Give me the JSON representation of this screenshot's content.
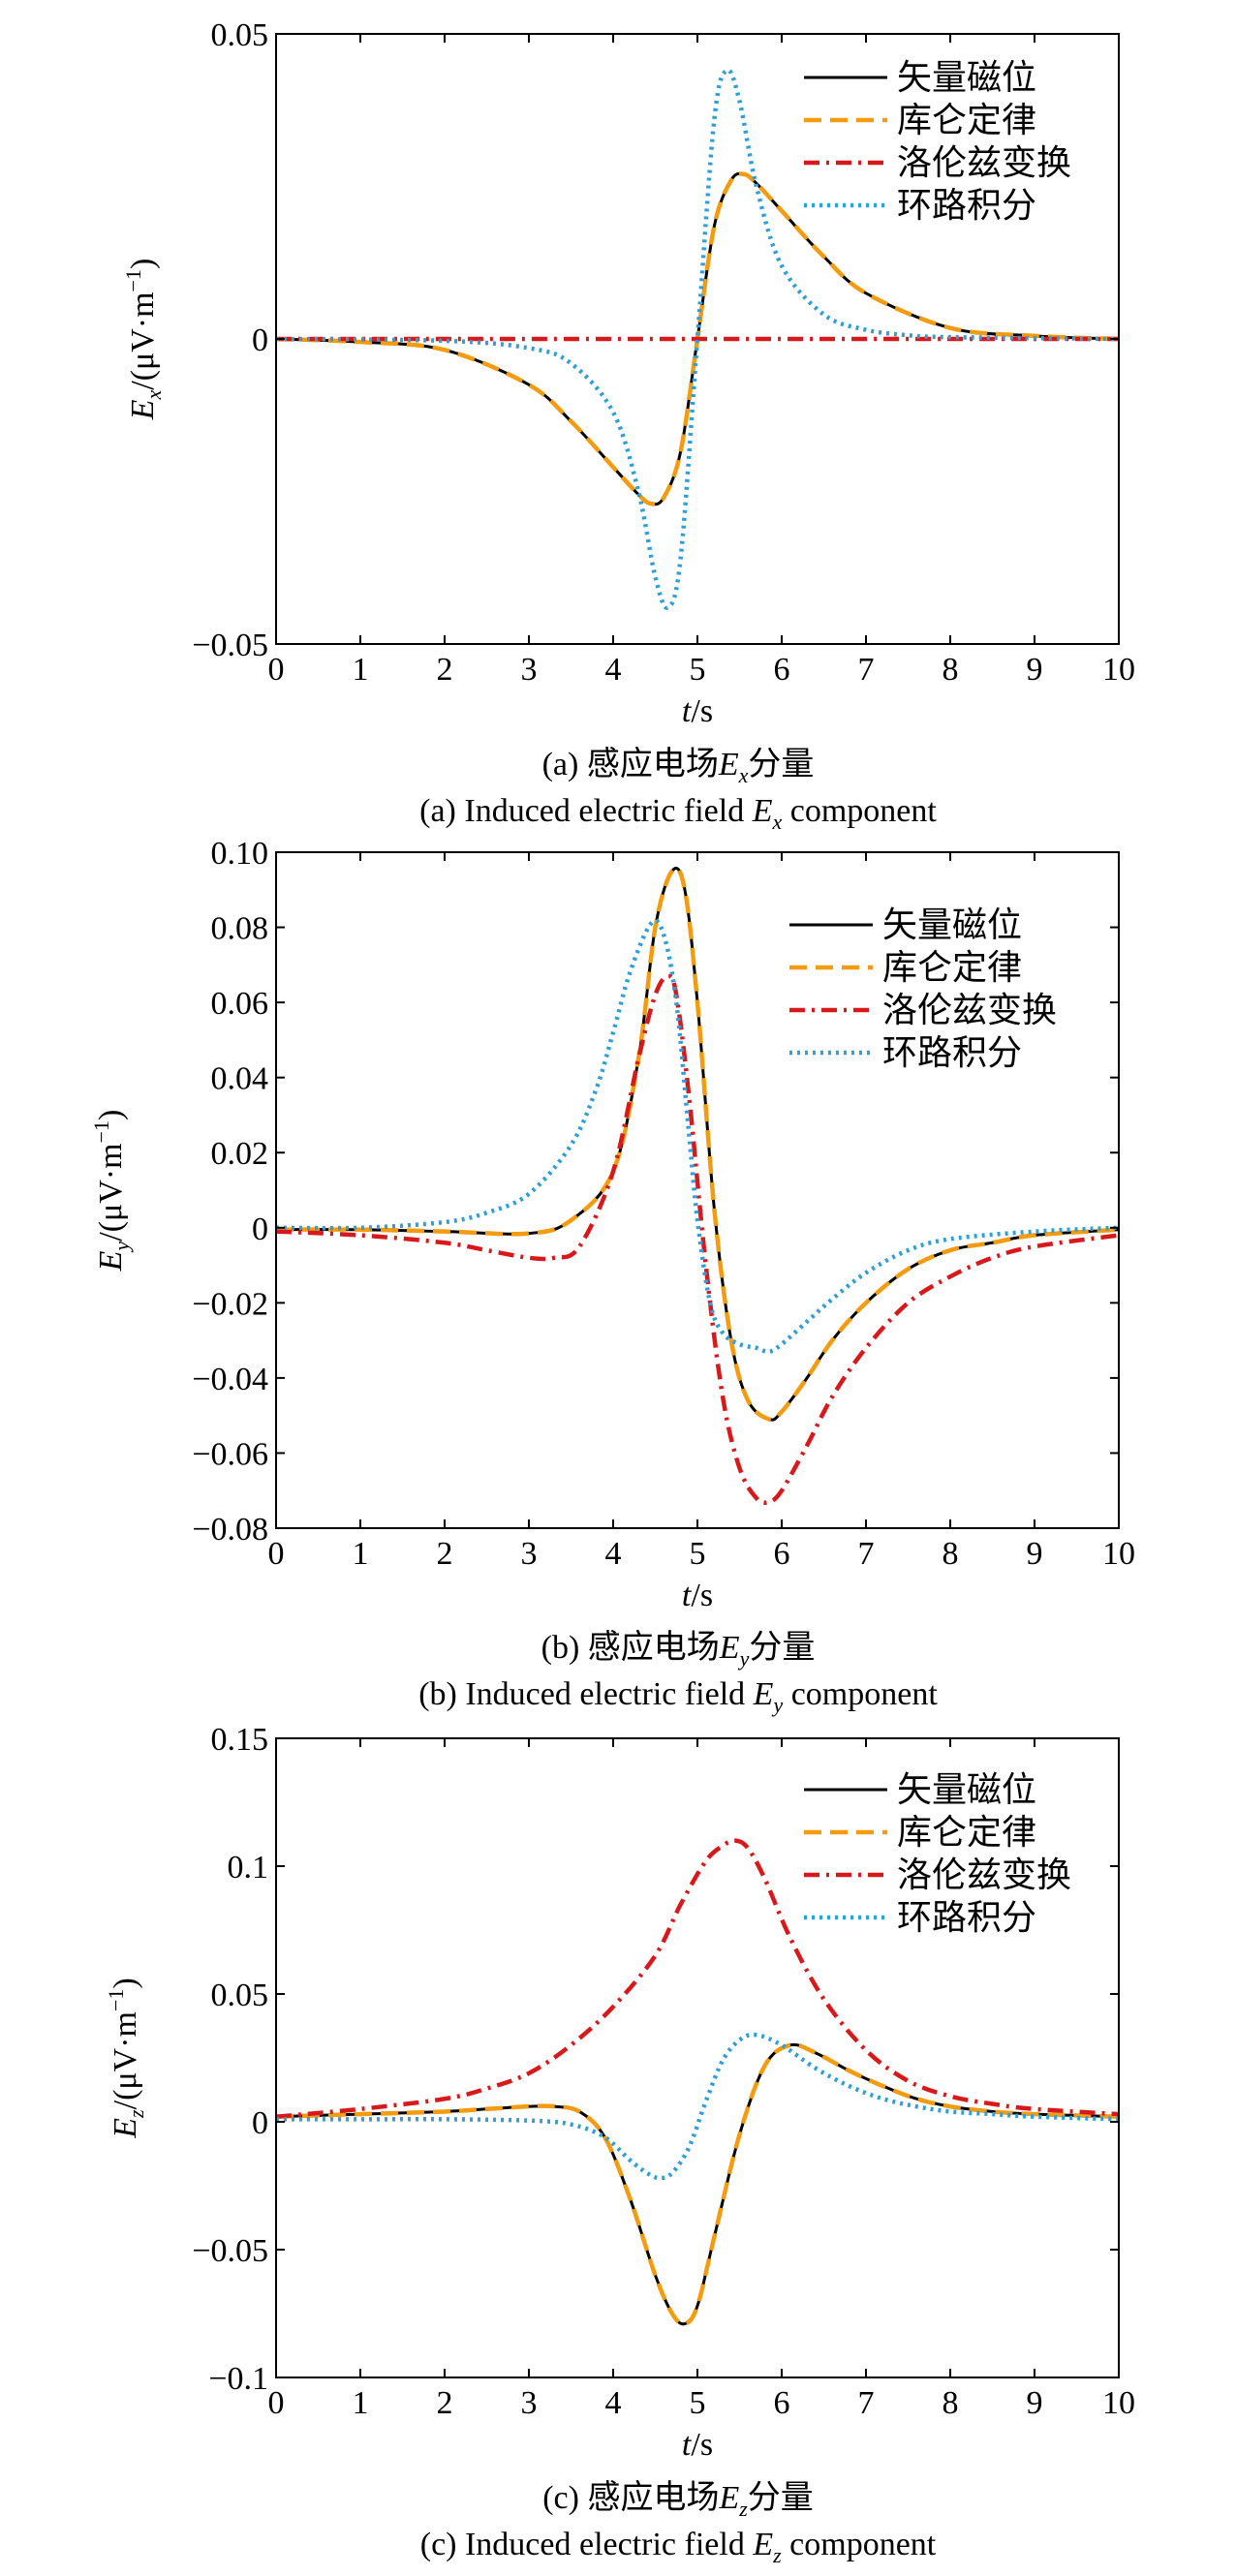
{
  "chart_data": [
    {
      "panel": "a",
      "type": "line",
      "xlabel_var": "t",
      "xlabel_unit": "/s",
      "ylabel_var": "E",
      "ylabel_sub": "x",
      "ylabel_unit": "/(μV·m",
      "ylabel_exp": "−1",
      "ylabel_close": ")",
      "xlim": [
        0,
        10
      ],
      "ylim": [
        -0.05,
        0.05
      ],
      "xticks": [
        0,
        1,
        2,
        3,
        4,
        5,
        6,
        7,
        8,
        9,
        10
      ],
      "xtick_labels": [
        "0",
        "1",
        "2",
        "3",
        "4",
        "5",
        "6",
        "7",
        "8",
        "9",
        "10"
      ],
      "yticks": [
        -0.05,
        0,
        0.05
      ],
      "ytick_labels": [
        "−0.05",
        "0",
        "0.05"
      ],
      "grid": false,
      "legend_position": "top-right",
      "caption_cn_prefix": "(a) 感应电场",
      "caption_cn_var": "E",
      "caption_cn_sub": "x",
      "caption_cn_suffix": "分量",
      "caption_en_prefix": "(a) Induced electric field ",
      "caption_en_var": "E",
      "caption_en_sub": "x",
      "caption_en_suffix": " component",
      "series": [
        {
          "name": "矢量磁位",
          "color": "#000000",
          "style": "solid",
          "x": [
            0,
            1,
            2,
            3,
            3.5,
            4,
            4.3,
            4.45,
            4.6,
            4.8,
            5.0,
            5.2,
            5.4,
            5.55,
            5.7,
            6.0,
            6.5,
            7,
            8,
            9,
            10
          ],
          "y": [
            0,
            -0.0005,
            -0.0018,
            -0.0075,
            -0.0135,
            -0.021,
            -0.0255,
            -0.027,
            -0.026,
            -0.0185,
            0,
            0.0185,
            0.026,
            0.027,
            0.0255,
            0.021,
            0.0135,
            0.0075,
            0.0018,
            0.0005,
            0
          ]
        },
        {
          "name": "库仑定律",
          "color": "#f39c12",
          "style": "dashed",
          "x": [
            0,
            1,
            2,
            3,
            3.5,
            4,
            4.3,
            4.45,
            4.6,
            4.8,
            5.0,
            5.2,
            5.4,
            5.55,
            5.7,
            6.0,
            6.5,
            7,
            8,
            9,
            10
          ],
          "y": [
            0,
            -0.0005,
            -0.0018,
            -0.0075,
            -0.0135,
            -0.021,
            -0.0255,
            -0.027,
            -0.026,
            -0.0185,
            0,
            0.0185,
            0.026,
            0.027,
            0.0255,
            0.021,
            0.0135,
            0.0075,
            0.0018,
            0.0005,
            0
          ]
        },
        {
          "name": "洛伦兹变换",
          "color": "#d7191c",
          "style": "dashdot",
          "x": [
            0,
            10
          ],
          "y": [
            0,
            0
          ]
        },
        {
          "name": "环路积分",
          "color": "#2e9fd8",
          "style": "dotted",
          "x": [
            0,
            2,
            3,
            3.5,
            4,
            4.3,
            4.5,
            4.65,
            4.8,
            5.0,
            5.2,
            5.35,
            5.5,
            5.7,
            6.0,
            6.5,
            7,
            7.5,
            8,
            10
          ],
          "y": [
            0,
            -0.0003,
            -0.0015,
            -0.004,
            -0.012,
            -0.025,
            -0.039,
            -0.044,
            -0.036,
            0,
            0.036,
            0.044,
            0.039,
            0.025,
            0.012,
            0.004,
            0.0015,
            0.0006,
            0.0003,
            0
          ]
        }
      ]
    },
    {
      "panel": "b",
      "type": "line",
      "xlabel_var": "t",
      "xlabel_unit": "/s",
      "ylabel_var": "E",
      "ylabel_sub": "y",
      "ylabel_unit": "/(μV·m",
      "ylabel_exp": "−1",
      "ylabel_close": ")",
      "xlim": [
        0,
        10
      ],
      "ylim": [
        -0.08,
        0.1
      ],
      "xticks": [
        0,
        1,
        2,
        3,
        4,
        5,
        6,
        7,
        8,
        9,
        10
      ],
      "xtick_labels": [
        "0",
        "1",
        "2",
        "3",
        "4",
        "5",
        "6",
        "7",
        "8",
        "9",
        "10"
      ],
      "yticks": [
        -0.08,
        -0.06,
        -0.04,
        -0.02,
        0,
        0.02,
        0.04,
        0.06,
        0.08,
        0.1
      ],
      "ytick_labels": [
        "−0.08",
        "−0.06",
        "−0.04",
        "−0.02",
        "0",
        "0.02",
        "0.04",
        "0.06",
        "0.08",
        "0.10"
      ],
      "grid": false,
      "legend_position": "top-right",
      "caption_cn_prefix": "(b) 感应电场",
      "caption_cn_var": "E",
      "caption_cn_sub": "y",
      "caption_cn_suffix": "分量",
      "caption_en_prefix": "(b) Induced electric field ",
      "caption_en_var": "E",
      "caption_en_sub": "y",
      "caption_en_suffix": " component",
      "series": [
        {
          "name": "矢量磁位",
          "color": "#000000",
          "style": "solid",
          "x": [
            0,
            1,
            2,
            3,
            3.5,
            4,
            4.3,
            4.5,
            4.7,
            4.85,
            5.0,
            5.2,
            5.4,
            5.6,
            5.85,
            6.0,
            6.3,
            6.6,
            7,
            7.5,
            8,
            8.5,
            9,
            10
          ],
          "y": [
            -0.0005,
            -0.0005,
            -0.001,
            -0.0015,
            0.002,
            0.015,
            0.045,
            0.08,
            0.095,
            0.09,
            0.06,
            0.005,
            -0.03,
            -0.046,
            -0.051,
            -0.049,
            -0.04,
            -0.03,
            -0.02,
            -0.011,
            -0.006,
            -0.004,
            -0.002,
            -0.0005
          ]
        },
        {
          "name": "库仑定律",
          "color": "#f39c12",
          "style": "dashed",
          "x": [
            0,
            1,
            2,
            3,
            3.5,
            4,
            4.3,
            4.5,
            4.7,
            4.85,
            5.0,
            5.2,
            5.4,
            5.6,
            5.85,
            6.0,
            6.3,
            6.6,
            7,
            7.5,
            8,
            8.5,
            9,
            10
          ],
          "y": [
            -0.0005,
            -0.0005,
            -0.001,
            -0.0015,
            0.002,
            0.015,
            0.045,
            0.08,
            0.095,
            0.09,
            0.06,
            0.005,
            -0.03,
            -0.046,
            -0.051,
            -0.049,
            -0.04,
            -0.03,
            -0.02,
            -0.011,
            -0.006,
            -0.004,
            -0.002,
            -0.0005
          ]
        },
        {
          "name": "洛伦兹变换",
          "color": "#d7191c",
          "style": "dashdot",
          "x": [
            0,
            1,
            2,
            2.5,
            3,
            3.3,
            3.6,
            4,
            4.3,
            4.5,
            4.65,
            4.75,
            4.9,
            5.1,
            5.3,
            5.5,
            5.7,
            5.85,
            6.0,
            6.3,
            6.6,
            7,
            7.5,
            8,
            8.5,
            9,
            10
          ],
          "y": [
            -0.001,
            -0.002,
            -0.004,
            -0.006,
            -0.008,
            -0.008,
            -0.005,
            0.015,
            0.045,
            0.062,
            0.067,
            0.062,
            0.035,
            -0.01,
            -0.045,
            -0.064,
            -0.072,
            -0.073,
            -0.07,
            -0.058,
            -0.045,
            -0.032,
            -0.02,
            -0.013,
            -0.008,
            -0.005,
            -0.002
          ]
        },
        {
          "name": "环路积分",
          "color": "#2e9fd8",
          "style": "dotted",
          "x": [
            0,
            1,
            2,
            2.5,
            3,
            3.5,
            3.8,
            4.0,
            4.2,
            4.45,
            4.6,
            4.75,
            4.9,
            5.0,
            5.15,
            5.3,
            5.5,
            5.7,
            5.85,
            6.0,
            6.3,
            6.6,
            7,
            7.5,
            8,
            9,
            10
          ],
          "y": [
            0,
            0,
            0.0015,
            0.004,
            0.009,
            0.022,
            0.037,
            0.052,
            0.068,
            0.081,
            0.078,
            0.06,
            0.025,
            0.002,
            -0.02,
            -0.028,
            -0.031,
            -0.032,
            -0.033,
            -0.031,
            -0.025,
            -0.019,
            -0.012,
            -0.006,
            -0.003,
            -0.001,
            0
          ]
        }
      ]
    },
    {
      "panel": "c",
      "type": "line",
      "xlabel_var": "t",
      "xlabel_unit": "/s",
      "ylabel_var": "E",
      "ylabel_sub": "z",
      "ylabel_unit": "/(μV·m",
      "ylabel_exp": "−1",
      "ylabel_close": ")",
      "xlim": [
        0,
        10
      ],
      "ylim": [
        -0.1,
        0.15
      ],
      "xticks": [
        0,
        1,
        2,
        3,
        4,
        5,
        6,
        7,
        8,
        9,
        10
      ],
      "xtick_labels": [
        "0",
        "1",
        "2",
        "3",
        "4",
        "5",
        "6",
        "7",
        "8",
        "9",
        "10"
      ],
      "yticks": [
        -0.1,
        -0.05,
        0,
        0.05,
        0.1,
        0.15
      ],
      "ytick_labels": [
        "−0.1",
        "−0.05",
        "0",
        "0.05",
        "0.1",
        "0.15"
      ],
      "grid": false,
      "legend_position": "top-right",
      "caption_cn_prefix": "(c) 感应电场",
      "caption_cn_var": "E",
      "caption_cn_sub": "z",
      "caption_cn_suffix": "分量",
      "caption_en_prefix": "(c) Induced electric field ",
      "caption_en_var": "E",
      "caption_en_sub": "z",
      "caption_en_suffix": " component",
      "series": [
        {
          "name": "矢量磁位",
          "color": "#000000",
          "style": "solid",
          "x": [
            0,
            1,
            2,
            2.5,
            3,
            3.3,
            3.6,
            3.9,
            4.2,
            4.5,
            4.7,
            4.85,
            5.0,
            5.2,
            5.5,
            5.8,
            6.1,
            6.4,
            6.8,
            7.2,
            7.6,
            8,
            8.5,
            9,
            10
          ],
          "y": [
            0.002,
            0.003,
            0.004,
            0.005,
            0.006,
            0.006,
            0.004,
            -0.006,
            -0.03,
            -0.06,
            -0.075,
            -0.079,
            -0.072,
            -0.045,
            -0.005,
            0.022,
            0.03,
            0.027,
            0.02,
            0.014,
            0.009,
            0.006,
            0.004,
            0.003,
            0.002
          ]
        },
        {
          "name": "库仑定律",
          "color": "#f39c12",
          "style": "dashed",
          "x": [
            0,
            1,
            2,
            2.5,
            3,
            3.3,
            3.6,
            3.9,
            4.2,
            4.5,
            4.7,
            4.85,
            5.0,
            5.2,
            5.5,
            5.8,
            6.1,
            6.4,
            6.8,
            7.2,
            7.6,
            8,
            8.5,
            9,
            10
          ],
          "y": [
            0.002,
            0.003,
            0.004,
            0.005,
            0.006,
            0.006,
            0.004,
            -0.006,
            -0.03,
            -0.06,
            -0.075,
            -0.079,
            -0.072,
            -0.045,
            -0.005,
            0.022,
            0.03,
            0.027,
            0.02,
            0.014,
            0.009,
            0.006,
            0.004,
            0.003,
            0.002
          ]
        },
        {
          "name": "洛伦兹变换",
          "color": "#d7191c",
          "style": "dashdot",
          "x": [
            0,
            1,
            2,
            2.5,
            3,
            3.5,
            4,
            4.5,
            4.8,
            5.1,
            5.3,
            5.45,
            5.6,
            5.8,
            6.1,
            6.5,
            7,
            7.5,
            8,
            8.5,
            9,
            10
          ],
          "y": [
            0.002,
            0.005,
            0.009,
            0.013,
            0.019,
            0.03,
            0.045,
            0.065,
            0.085,
            0.102,
            0.108,
            0.11,
            0.107,
            0.095,
            0.072,
            0.048,
            0.028,
            0.016,
            0.01,
            0.007,
            0.005,
            0.003
          ]
        },
        {
          "name": "环路积分",
          "color": "#2e9fd8",
          "style": "dotted",
          "x": [
            0,
            1,
            2,
            3,
            3.5,
            3.9,
            4.2,
            4.4,
            4.55,
            4.7,
            4.9,
            5.1,
            5.3,
            5.5,
            5.7,
            6.0,
            6.4,
            6.8,
            7.2,
            7.6,
            8,
            8.5,
            9,
            10
          ],
          "y": [
            0.001,
            0.001,
            0.001,
            0.0005,
            -0.001,
            -0.006,
            -0.015,
            -0.02,
            -0.022,
            -0.02,
            -0.01,
            0.008,
            0.024,
            0.032,
            0.034,
            0.03,
            0.021,
            0.014,
            0.009,
            0.006,
            0.004,
            0.003,
            0.002,
            0.001
          ]
        }
      ]
    }
  ]
}
